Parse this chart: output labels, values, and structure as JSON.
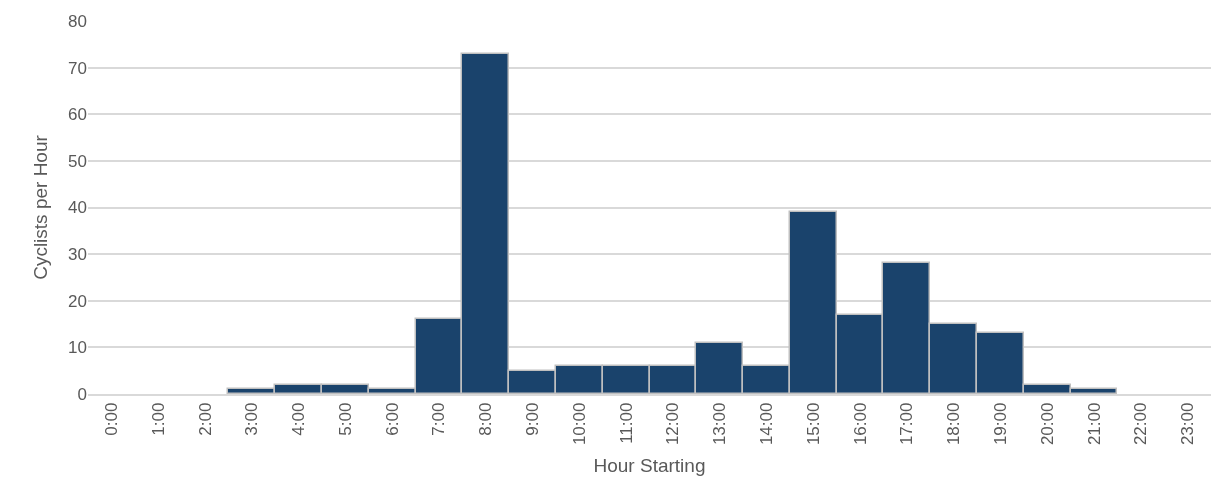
{
  "chart_data": {
    "type": "bar",
    "xlabel": "Hour Starting",
    "ylabel": "Cyclists per Hour",
    "categories": [
      "0:00",
      "1:00",
      "2:00",
      "3:00",
      "4:00",
      "5:00",
      "6:00",
      "7:00",
      "8:00",
      "9:00",
      "10:00",
      "11:00",
      "12:00",
      "13:00",
      "14:00",
      "15:00",
      "16:00",
      "17:00",
      "18:00",
      "19:00",
      "20:00",
      "21:00",
      "22:00",
      "23:00"
    ],
    "values": [
      0,
      0,
      0,
      1,
      2,
      2,
      1,
      16,
      73,
      5,
      6,
      6,
      6,
      11,
      6,
      39,
      17,
      28,
      15,
      13,
      2,
      1,
      0,
      0
    ],
    "color": "#1a436c",
    "ylim": [
      0,
      80
    ],
    "yticks": [
      0,
      10,
      20,
      30,
      40,
      50,
      60,
      70,
      80
    ],
    "grid": "y",
    "legend": false
  }
}
